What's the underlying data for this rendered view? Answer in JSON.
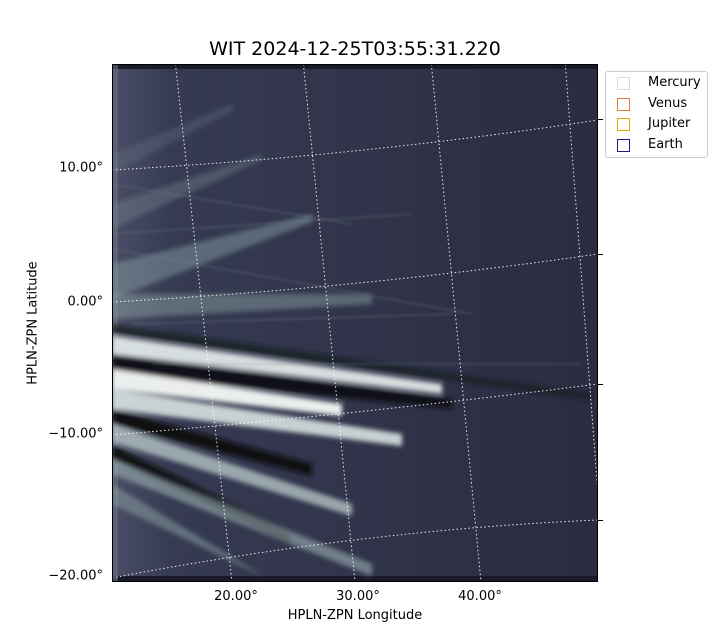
{
  "title": "WIT 2024-12-25T03:55:31.220",
  "axes": {
    "xlabel": "HPLN-ZPN Longitude",
    "ylabel": "HPLN-ZPN Latitude",
    "xticks": [
      "20.00°",
      "30.00°",
      "40.00°"
    ],
    "yticks": [
      "10.00°",
      "0.00°",
      "−10.00°",
      "−20.00°"
    ]
  },
  "legend": [
    {
      "label": "Mercury",
      "color": "#d9d9d9"
    },
    {
      "label": "Venus",
      "color": "#e07b39"
    },
    {
      "label": "Jupiter",
      "color": "#e0a800"
    },
    {
      "label": "Earth",
      "color": "#1a1a8c"
    }
  ],
  "image": {
    "colormap": "bone",
    "grid": "dotted-white"
  }
}
